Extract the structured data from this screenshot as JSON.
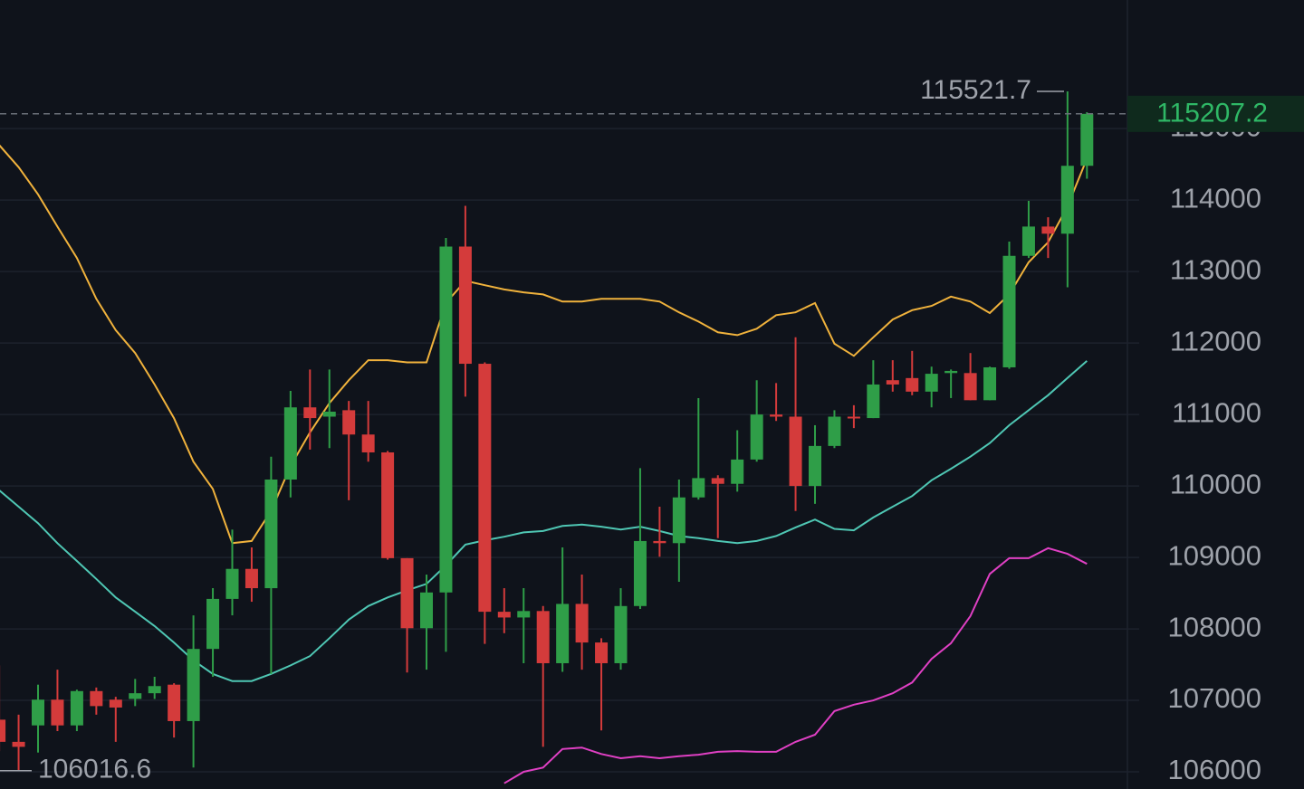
{
  "chart_data": {
    "type": "candlestick",
    "ylim": [
      105760,
      116800
    ],
    "yticks": [
      106000,
      107000,
      108000,
      109000,
      110000,
      111000,
      112000,
      113000,
      114000,
      115000
    ],
    "grid": true,
    "up_color": "#2f9e48",
    "down_color": "#d43b3b",
    "open": [
      106730,
      106420,
      106650,
      107010,
      106650,
      107130,
      107010,
      107020,
      107100,
      107220,
      106710,
      107720,
      108420,
      108840,
      108570,
      110090,
      111100,
      110970,
      111060,
      110720,
      110470,
      108990,
      108010,
      108510,
      113350,
      111710,
      108240,
      108160,
      108250,
      107520,
      108350,
      107810,
      107520,
      108320,
      109230,
      109200,
      109840,
      110110,
      110030,
      110370,
      111000,
      110970,
      110000,
      110560,
      110970,
      110950,
      111480,
      111510,
      111320,
      111580,
      111580,
      111200,
      111660,
      113220,
      113630,
      113530,
      114480
    ],
    "high": [
      107490,
      106800,
      107220,
      107430,
      107150,
      107180,
      107050,
      107300,
      107330,
      107240,
      108190,
      108570,
      109390,
      109140,
      110410,
      111330,
      111630,
      111630,
      111190,
      111190,
      110490,
      108990,
      108760,
      113470,
      113920,
      111730,
      108570,
      108570,
      108320,
      109140,
      108760,
      107870,
      108570,
      110250,
      109710,
      110090,
      111230,
      110150,
      110780,
      111480,
      111440,
      112080,
      110850,
      111060,
      111130,
      111760,
      111760,
      111890,
      111670,
      111630,
      111860,
      111670,
      113420,
      113990,
      113760,
      115521.7,
      115230
    ],
    "low": [
      106290,
      106016.6,
      106270,
      106570,
      106570,
      106800,
      106420,
      106920,
      107020,
      106480,
      106060,
      107330,
      108190,
      108380,
      107370,
      109840,
      110510,
      110530,
      109800,
      110340,
      108970,
      107390,
      107430,
      107680,
      111250,
      107790,
      107940,
      107520,
      106350,
      107400,
      107430,
      106580,
      107430,
      108280,
      109010,
      108660,
      109810,
      109270,
      109920,
      110340,
      110910,
      109650,
      109750,
      110530,
      110810,
      110950,
      111320,
      111270,
      111100,
      111230,
      111200,
      111200,
      111640,
      113190,
      113190,
      112780,
      114300
    ],
    "close": [
      106420,
      106350,
      107010,
      106650,
      107130,
      106920,
      106900,
      107100,
      107200,
      106710,
      107720,
      108420,
      108840,
      108570,
      110090,
      111100,
      110950,
      111040,
      110720,
      110470,
      108990,
      108010,
      108510,
      113350,
      111710,
      108240,
      108160,
      108250,
      107520,
      108350,
      107810,
      107520,
      108320,
      109230,
      109200,
      109840,
      110110,
      110030,
      110370,
      111000,
      110970,
      110000,
      110560,
      110970,
      110950,
      111420,
      111420,
      111320,
      111570,
      111610,
      111200,
      111660,
      113220,
      113630,
      113530,
      114480,
      115207.2
    ],
    "lines": [
      {
        "color": "#f0b23c",
        "values": [
          114770,
          114460,
          114080,
          113630,
          113190,
          112620,
          112180,
          111860,
          111420,
          110950,
          110340,
          109960,
          109200,
          109230,
          109650,
          110280,
          110750,
          111160,
          111480,
          111760,
          111760,
          111730,
          111730,
          112560,
          112870,
          112810,
          112750,
          112710,
          112680,
          112580,
          112580,
          112620,
          112620,
          112620,
          112580,
          112430,
          112300,
          112150,
          112110,
          112200,
          112390,
          112430,
          112560,
          111990,
          111820,
          112080,
          112330,
          112460,
          112520,
          112650,
          112580,
          112420,
          112680,
          113130,
          113410,
          113910,
          114580
        ]
      },
      {
        "color": "#4fc7b4",
        "values": [
          109940,
          109710,
          109480,
          109200,
          108950,
          108700,
          108440,
          108240,
          108040,
          107810,
          107560,
          107370,
          107270,
          107270,
          107370,
          107490,
          107620,
          107870,
          108130,
          108320,
          108440,
          108540,
          108630,
          108890,
          109180,
          109240,
          109290,
          109350,
          109370,
          109440,
          109460,
          109430,
          109390,
          109430,
          109370,
          109300,
          109270,
          109230,
          109200,
          109230,
          109300,
          109420,
          109530,
          109400,
          109380,
          109560,
          109710,
          109860,
          110080,
          110240,
          110410,
          110600,
          110850,
          111060,
          111270,
          111510,
          111750
        ]
      },
      {
        "color": "#e040c4",
        "values": [
          null,
          null,
          null,
          null,
          null,
          null,
          null,
          null,
          null,
          null,
          null,
          null,
          null,
          null,
          null,
          null,
          null,
          null,
          null,
          null,
          null,
          null,
          null,
          null,
          null,
          null,
          105840,
          106000,
          106060,
          106320,
          106340,
          106250,
          106190,
          106220,
          106190,
          106220,
          106240,
          106280,
          106290,
          106280,
          106280,
          106420,
          106520,
          106850,
          106940,
          107000,
          107100,
          107250,
          107580,
          107800,
          108180,
          108770,
          108990,
          108990,
          109130,
          109050,
          108910
        ]
      }
    ],
    "high_marker": 115521.7,
    "low_marker": 106016.6,
    "last_price": 115207.2
  }
}
